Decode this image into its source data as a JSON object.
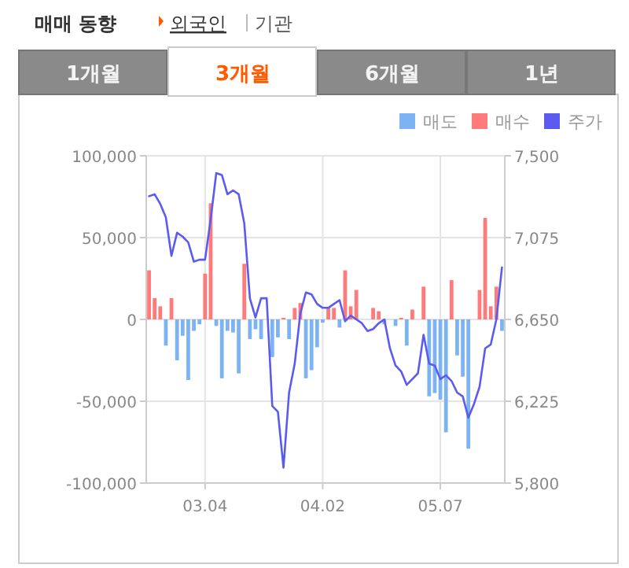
{
  "chart_data": {
    "type": "bar",
    "title": "매매 동향",
    "annotations": [
      "외국인",
      "기관",
      "1개월",
      "3개월",
      "6개월",
      "1년"
    ],
    "categories": [
      null,
      null,
      null,
      null,
      null,
      null,
      null,
      null,
      null,
      null,
      "03.04",
      null,
      null,
      null,
      null,
      null,
      null,
      null,
      null,
      null,
      null,
      null,
      null,
      null,
      null,
      null,
      null,
      null,
      null,
      null,
      null,
      "04.02",
      null,
      null,
      null,
      null,
      null,
      null,
      null,
      null,
      null,
      null,
      null,
      null,
      null,
      null,
      null,
      null,
      null,
      null,
      null,
      null,
      "05.07",
      null,
      null,
      null,
      null,
      null,
      null,
      null,
      null,
      null,
      null,
      null
    ],
    "series": [
      {
        "name": "매도",
        "color": "#7eb3f3",
        "values": [
          null,
          null,
          null,
          -16000,
          null,
          -25000,
          -10000,
          -37000,
          -7000,
          -3000,
          null,
          null,
          -4000,
          -36000,
          -7000,
          -8000,
          -33000,
          null,
          -12000,
          -6000,
          -12000,
          null,
          -23000,
          -11000,
          null,
          -12000,
          null,
          null,
          -36000,
          -31000,
          -17000,
          -2000,
          null,
          null,
          -5000,
          null,
          null,
          null,
          null,
          null,
          null,
          null,
          -3000,
          null,
          -4000,
          null,
          -16000,
          null,
          null,
          null,
          -47000,
          -45000,
          -49000,
          -69000,
          null,
          -22000,
          -35000,
          -79000,
          null,
          null,
          null,
          null,
          null,
          -7000
        ]
      },
      {
        "name": "매수",
        "color": "#ff7b7b",
        "values": [
          30000,
          13000,
          8000,
          null,
          13000,
          null,
          null,
          null,
          null,
          null,
          28000,
          71000,
          null,
          null,
          null,
          null,
          null,
          34000,
          null,
          null,
          null,
          null,
          null,
          null,
          1000,
          null,
          7000,
          10000,
          null,
          null,
          null,
          null,
          7000,
          7000,
          null,
          30000,
          8000,
          18000,
          null,
          null,
          7000,
          5000,
          null,
          null,
          null,
          1000,
          null,
          6000,
          null,
          20000,
          null,
          null,
          null,
          null,
          24000,
          null,
          null,
          null,
          null,
          18000,
          62000,
          8000,
          20000,
          null
        ]
      },
      {
        "name": "주가",
        "type": "line",
        "axis": "y2",
        "color": "#5b5bf0",
        "values": [
          7290,
          7300,
          7250,
          7180,
          6980,
          7100,
          7080,
          7050,
          6950,
          6960,
          6960,
          7170,
          7410,
          7400,
          7300,
          7320,
          7300,
          7150,
          6760,
          6660,
          6760,
          6760,
          6200,
          6170,
          5880,
          6270,
          6420,
          6680,
          6790,
          6780,
          6730,
          6710,
          6710,
          6730,
          6750,
          6640,
          6670,
          6650,
          6630,
          6590,
          6600,
          6630,
          6650,
          6500,
          6410,
          6380,
          6310,
          6340,
          6370,
          6570,
          6420,
          6410,
          6340,
          6360,
          6330,
          6270,
          6250,
          6140,
          6210,
          6300,
          6500,
          6520,
          6650,
          6920
        ]
      }
    ],
    "ylim": [
      -100000,
      100000
    ],
    "yticks": [
      {
        "value": -100000,
        "label": "-100,000"
      },
      {
        "value": -50000,
        "label": "-50,000"
      },
      0,
      {
        "value": 50000,
        "label": "50,000"
      },
      {
        "value": 100000,
        "label": "100,000"
      }
    ],
    "y2lim": [
      5800,
      7500
    ],
    "y2ticks": [
      {
        "value": 5800,
        "label": "5,800"
      },
      {
        "value": 6225,
        "label": "6,225"
      },
      {
        "value": 6650,
        "label": "6,650"
      },
      {
        "value": 7075,
        "label": "7,075"
      },
      {
        "value": 7500,
        "label": "7,500"
      }
    ],
    "grid": true,
    "legend": "top right"
  }
}
